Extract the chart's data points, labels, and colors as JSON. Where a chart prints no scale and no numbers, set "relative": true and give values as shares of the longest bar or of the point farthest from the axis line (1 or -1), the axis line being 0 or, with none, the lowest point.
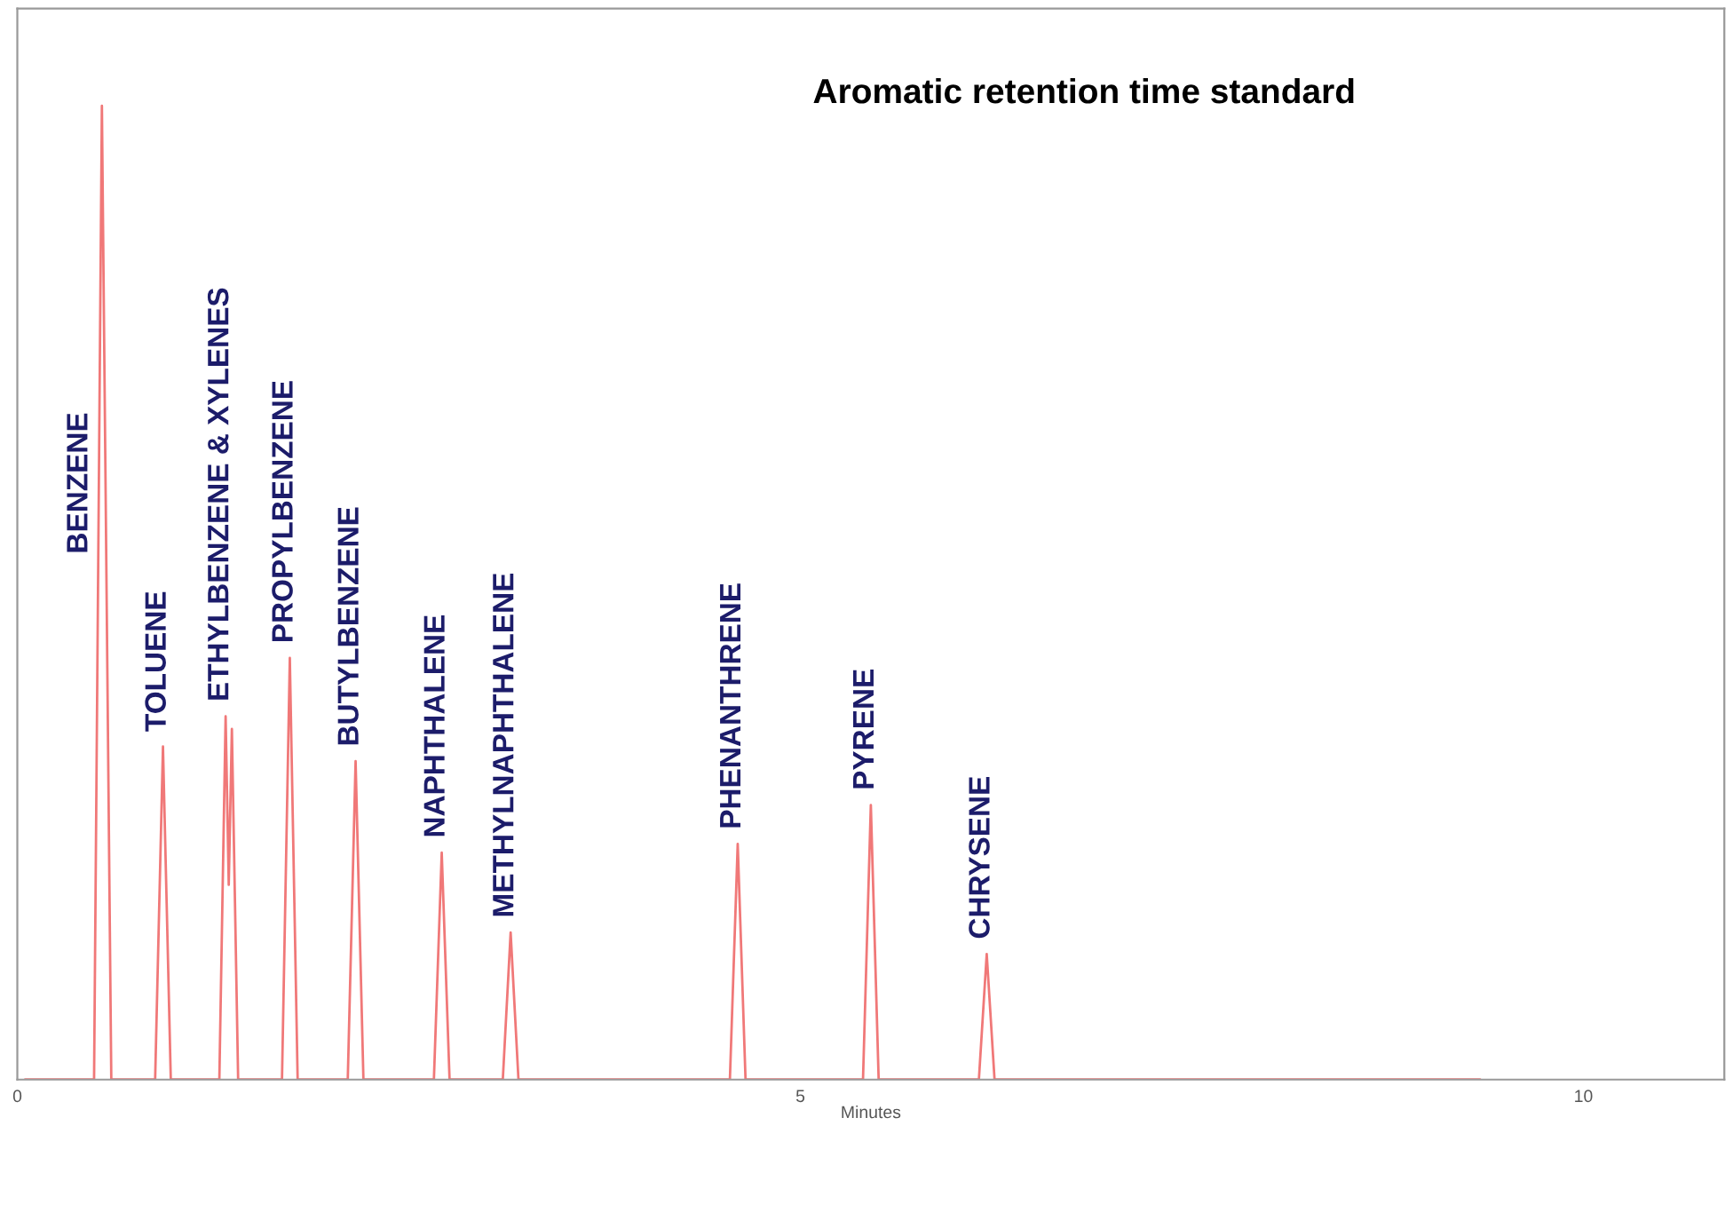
{
  "chart_data": {
    "type": "line",
    "title": "Aromatic retention time standard",
    "xlabel": "Minutes",
    "relative": true,
    "xlim": [
      0,
      10.9
    ],
    "xticks": [
      0,
      5,
      10
    ],
    "grid": false,
    "legend": false,
    "marker": "none",
    "line_style": "solid",
    "series": [
      {
        "color": "#f07878",
        "x": [
          0.05,
          0.49,
          0.54,
          0.6,
          0.88,
          0.93,
          0.98,
          1.29,
          1.33,
          1.35,
          1.37,
          1.41,
          1.69,
          1.74,
          1.79,
          2.11,
          2.16,
          2.21,
          2.66,
          2.71,
          2.76,
          3.1,
          3.15,
          3.2,
          4.55,
          4.6,
          4.65,
          5.4,
          5.45,
          5.5,
          6.14,
          6.19,
          6.24,
          9.34
        ],
        "values": [
          0,
          0,
          1.0,
          0,
          0,
          0.342,
          0,
          0,
          0.373,
          0.2,
          0.36,
          0,
          0,
          0.433,
          0,
          0,
          0.327,
          0,
          0,
          0.233,
          0,
          0,
          0.151,
          0,
          0,
          0.242,
          0,
          0,
          0.282,
          0,
          0,
          0.129,
          0,
          0
        ]
      }
    ],
    "annotations": [
      {
        "text": "BENZENE",
        "x": 0.54,
        "y": 0.54
      },
      {
        "text": "TOLUENE",
        "x": 0.93,
        "y": 0.342
      },
      {
        "text": "ETHYLBENZENE & XYLENES",
        "x": 1.33,
        "y": 0.373
      },
      {
        "text": "PROPYLBENZENE",
        "x": 1.74,
        "y": 0.433
      },
      {
        "text": "BUTYLBENZENE",
        "x": 2.16,
        "y": 0.327
      },
      {
        "text": "NAPHTHALENE",
        "x": 2.71,
        "y": 0.233
      },
      {
        "text": "METHYLNAPHTHALENE",
        "x": 3.15,
        "y": 0.151
      },
      {
        "text": "PHENANTHRENE",
        "x": 4.6,
        "y": 0.242
      },
      {
        "text": "PYRENE",
        "x": 5.45,
        "y": 0.282
      },
      {
        "text": "CHRYSENE",
        "x": 6.19,
        "y": 0.129
      }
    ]
  }
}
